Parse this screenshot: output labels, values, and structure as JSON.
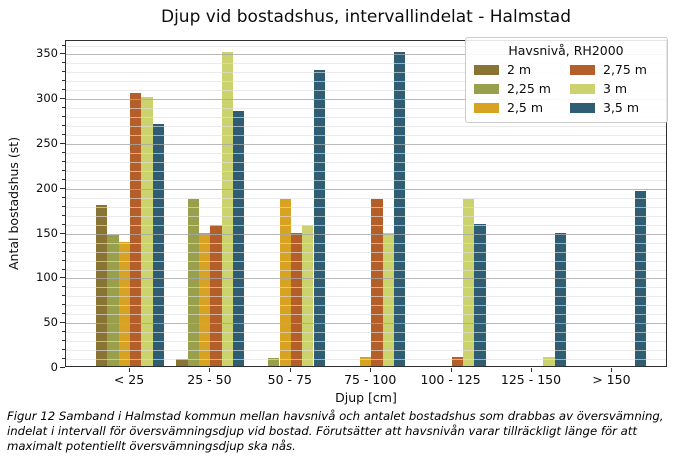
{
  "title": "Djup vid bostadshus, intervallindelat - Halmstad",
  "caption": "Figur 12 Samband i Halmstad kommun mellan havsnivå och antalet bostadshus som drabbas av översvämning, indelat i intervall för översvämningsdjup vid bostad. Förutsätter att havsnivån varar tillräckligt länge för att maximalt potentiellt översvämningsdjup ska nås.",
  "chart_data": {
    "type": "bar",
    "title": "Djup vid bostadshus, intervallindelat - Halmstad",
    "xlabel": "Djup [cm]",
    "ylabel": "Antal bostadshus (st)",
    "categories": [
      "< 25",
      "25 - 50",
      "50 - 75",
      "75 - 100",
      "100 - 125",
      "125 - 150",
      "> 150"
    ],
    "legend_title": "Havsnivå, RH2000",
    "legend_position": "upper right",
    "grid": true,
    "ylim": [
      0,
      365
    ],
    "yticks": [
      0,
      50,
      100,
      150,
      200,
      250,
      300,
      350
    ],
    "minor_grid_step": 10,
    "series": [
      {
        "name": "2 m",
        "color": "#8a7434",
        "values": [
          180,
          8,
          0,
          0,
          0,
          0,
          0
        ]
      },
      {
        "name": "2,25 m",
        "color": "#98a04b",
        "values": [
          146,
          186,
          9,
          0,
          0,
          0,
          0
        ]
      },
      {
        "name": "2,5 m",
        "color": "#d8a322",
        "values": [
          139,
          148,
          186,
          10,
          0,
          0,
          0
        ]
      },
      {
        "name": "2,75 m",
        "color": "#b45e29",
        "values": [
          305,
          157,
          148,
          186,
          10,
          0,
          0
        ]
      },
      {
        "name": "3 m",
        "color": "#ccd36e",
        "values": [
          300,
          351,
          157,
          148,
          186,
          10,
          0
        ]
      },
      {
        "name": "3,5 m",
        "color": "#2e5d74",
        "values": [
          270,
          285,
          330,
          350,
          158,
          148,
          195
        ]
      }
    ]
  }
}
